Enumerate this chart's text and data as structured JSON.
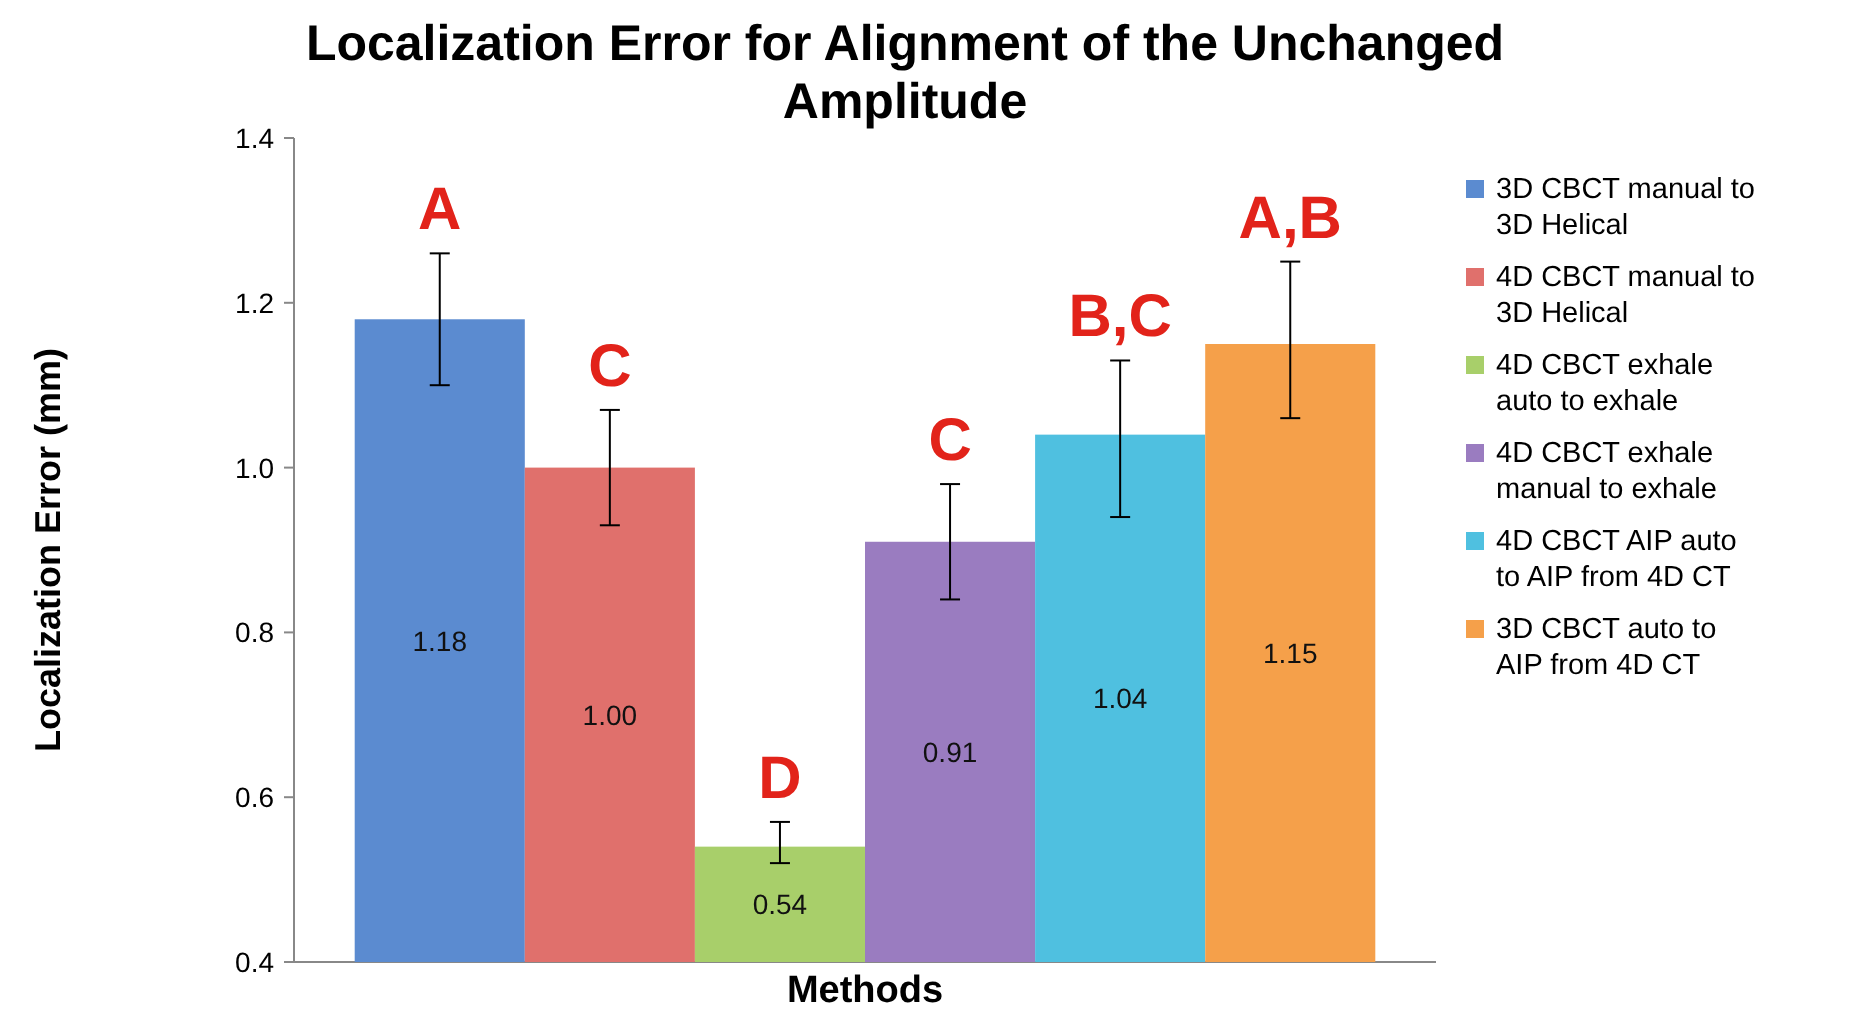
{
  "chart_data": {
    "type": "bar",
    "title": "Localization Error for Alignment of the Unchanged Amplitude",
    "xlabel": "Methods",
    "ylabel": "Localization Error (mm)",
    "categories": [
      null
    ],
    "series": [
      {
        "name": "3D CBCT manual to 3D Helical",
        "color": "#5b8bd0",
        "values": [
          1.18
        ],
        "value_labels": [
          "1.18"
        ],
        "errors": [
          [
            1.1,
            1.26
          ]
        ]
      },
      {
        "name": "4D CBCT manual to 3D Helical",
        "color": "#e0706c",
        "values": [
          1.0
        ],
        "value_labels": [
          "1.00"
        ],
        "errors": [
          [
            0.93,
            1.07
          ]
        ]
      },
      {
        "name": "4D CBCT exhale auto to exhale",
        "color": "#a8cf6a",
        "values": [
          0.54
        ],
        "value_labels": [
          "0.54"
        ],
        "errors": [
          [
            0.52,
            0.57
          ]
        ]
      },
      {
        "name": "4D CBCT exhale manual to exhale",
        "color": "#9a7cc0",
        "values": [
          0.91
        ],
        "value_labels": [
          "0.91"
        ],
        "errors": [
          [
            0.84,
            0.98
          ]
        ]
      },
      {
        "name": "4D CBCT AIP auto to AIP from 4D CT",
        "color": "#4fc0e0",
        "values": [
          1.04
        ],
        "value_labels": [
          "1.04"
        ],
        "errors": [
          [
            0.94,
            1.13
          ]
        ]
      },
      {
        "name": "3D CBCT auto to AIP from 4D CT",
        "color": "#f5a04a",
        "values": [
          1.15
        ],
        "value_labels": [
          "1.15"
        ],
        "errors": [
          [
            1.06,
            1.25
          ]
        ]
      }
    ],
    "ylim": [
      0.4,
      1.4
    ],
    "yticks": [
      {
        "value": 0.4,
        "label": "0.4"
      },
      {
        "value": 0.6,
        "label": "0.6"
      },
      {
        "value": 0.8,
        "label": "0.8"
      },
      {
        "value": 1.0,
        "label": "1.0"
      },
      {
        "value": 1.2,
        "label": "1.2"
      },
      {
        "value": 1.4,
        "label": "1.4"
      }
    ],
    "legend": "right",
    "grid": false,
    "annotations": [
      "A",
      "C",
      "D",
      "C",
      "B,C",
      "A,B"
    ]
  }
}
